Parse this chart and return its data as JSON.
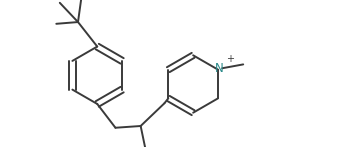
{
  "background": "#ffffff",
  "line_color": "#3a3a3a",
  "line_width": 1.4,
  "N_color": "#2a8a8a",
  "plus_color": "#3a3a3a",
  "figsize": [
    3.52,
    1.47
  ],
  "dpi": 100,
  "xlim": [
    0,
    10.0
  ],
  "ylim": [
    0,
    4.2
  ]
}
